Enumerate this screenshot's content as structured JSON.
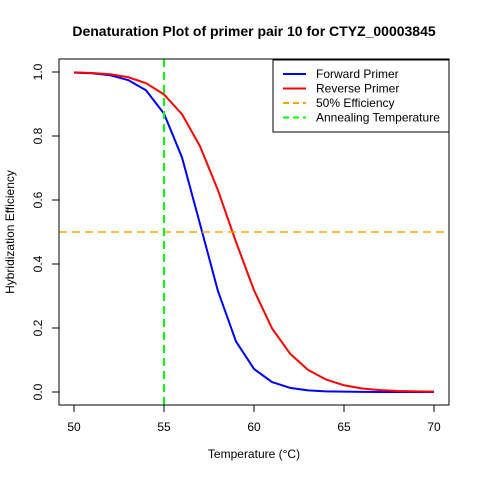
{
  "chart_data": {
    "type": "line",
    "title": "Denaturation Plot of primer pair 10 for CTYZ_00003845",
    "xlabel": "Temperature (°C)",
    "ylabel": "Hybridization Efficiency",
    "xlim": [
      50,
      70
    ],
    "ylim": [
      0,
      1
    ],
    "x_ticks": [
      50,
      55,
      60,
      65,
      70
    ],
    "y_ticks": [
      0.0,
      0.2,
      0.4,
      0.6,
      0.8,
      1.0
    ],
    "y_tick_labels": [
      "0.0",
      "0.2",
      "0.4",
      "0.6",
      "0.8",
      "1.0"
    ],
    "x": [
      50,
      51,
      52,
      53,
      54,
      55,
      56,
      57,
      58,
      59,
      60,
      61,
      62,
      63,
      64,
      65,
      66,
      67,
      68,
      69,
      70
    ],
    "series": [
      {
        "name": "Forward Primer",
        "color": "#0000ff",
        "values": [
          0.998,
          0.996,
          0.99,
          0.975,
          0.943,
          0.87,
          0.733,
          0.525,
          0.315,
          0.158,
          0.072,
          0.031,
          0.013,
          0.005,
          0.002,
          0.001,
          0.0005,
          0.0002,
          0.0001,
          0.0,
          0.0
        ]
      },
      {
        "name": "Reverse Primer",
        "color": "#ff0000",
        "values": [
          0.999,
          0.997,
          0.993,
          0.984,
          0.965,
          0.93,
          0.868,
          0.768,
          0.63,
          0.469,
          0.318,
          0.199,
          0.12,
          0.069,
          0.039,
          0.021,
          0.011,
          0.006,
          0.003,
          0.002,
          0.001
        ]
      }
    ],
    "reference_lines": [
      {
        "name": "50% Efficiency",
        "orientation": "horizontal",
        "value": 0.5,
        "color": "#ffa500",
        "style": "dashed"
      },
      {
        "name": "Annealing Temperature",
        "orientation": "vertical",
        "value": 55,
        "color": "#00ff00",
        "style": "dashed"
      }
    ],
    "legend": {
      "position": "top-right",
      "entries": [
        {
          "label": "Forward Primer",
          "color": "#0000ff",
          "style": "solid"
        },
        {
          "label": "Reverse Primer",
          "color": "#ff0000",
          "style": "solid"
        },
        {
          "label": "50% Efficiency",
          "color": "#ffa500",
          "style": "dashed"
        },
        {
          "label": "Annealing Temperature",
          "color": "#00ff00",
          "style": "dashed"
        }
      ]
    },
    "grid": false
  }
}
